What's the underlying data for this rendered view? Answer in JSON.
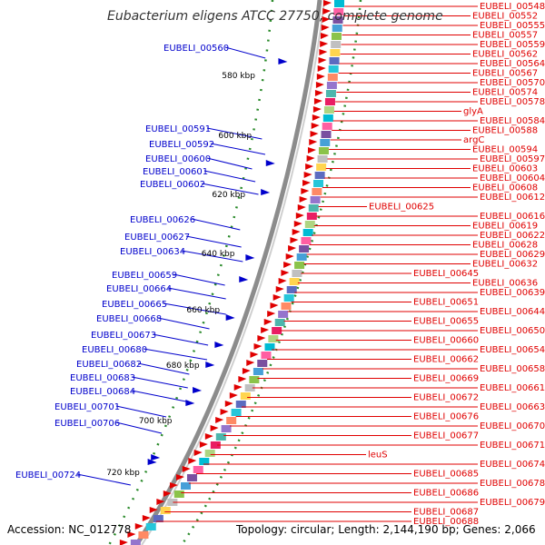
{
  "title": "Eubacterium eligens ATCC 27750, complete genome",
  "footer": {
    "accession": "Accession: NC_012778",
    "topology": "Topology: circular; Length: 2,144,190 bp; Genes: 2,066"
  },
  "ticks": [
    "580 kbp",
    "600 kbp",
    "620 kbp",
    "640 kbp",
    "660 kbp",
    "680 kbp",
    "700 kbp",
    "720 kbp"
  ],
  "left_labels": [
    "EUBELI_00560",
    "EUBELI_00591",
    "EUBELI_00592",
    "EUBELI_00600",
    "EUBELI_00601",
    "EUBELI_00602",
    "EUBELI_00626",
    "EUBELI_00627",
    "EUBELI_00634",
    "EUBELI_00659",
    "EUBELI_00664",
    "EUBELI_00665",
    "EUBELI_00668",
    "EUBELI_00673",
    "EUBELI_00680",
    "EUBELI_00682",
    "EUBELI_00683",
    "EUBELI_00684",
    "EUBELI_00701",
    "EUBELI_00706",
    "EUBELI_00724"
  ],
  "right_labels": [
    "EUBELI_00548",
    "EUBELI_00552",
    "EUBELI_00555",
    "EUBELI_00557",
    "EUBELI_00559",
    "EUBELI_00562",
    "EUBELI_00564",
    "EUBELI_00567",
    "EUBELI_00570",
    "EUBELI_00574",
    "EUBELI_00578",
    "glyA",
    "EUBELI_00584",
    "EUBELI_00588",
    "argC",
    "EUBELI_00594",
    "EUBELI_00597",
    "EUBELI_00603",
    "EUBELI_00604",
    "EUBELI_00608",
    "EUBELI_00612",
    "EUBELI_00625",
    "EUBELI_00616",
    "EUBELI_00619",
    "EUBELI_00622",
    "EUBELI_00628",
    "EUBELI_00629",
    "EUBELI_00632",
    "EUBELI_00645",
    "EUBELI_00636",
    "EUBELI_00639",
    "EUBELI_00651",
    "EUBELI_00644",
    "EUBELI_00655",
    "EUBELI_00650",
    "EUBELI_00660",
    "EUBELI_00654",
    "EUBELI_00662",
    "EUBELI_00658",
    "EUBELI_00669",
    "EUBELI_00661",
    "EUBELI_00672",
    "EUBELI_00663",
    "EUBELI_00676",
    "EUBELI_00670",
    "EUBELI_00677",
    "EUBELI_00671",
    "leuS",
    "EUBELI_00674",
    "EUBELI_00685",
    "EUBELI_00678",
    "EUBELI_00686",
    "EUBELI_00679",
    "EUBELI_00687",
    "EUBELI_00688"
  ],
  "colors": {
    "forward": "#e00000",
    "reverse": "#0000cc",
    "backbone": "#888888",
    "gc": "#2a8a2a"
  }
}
